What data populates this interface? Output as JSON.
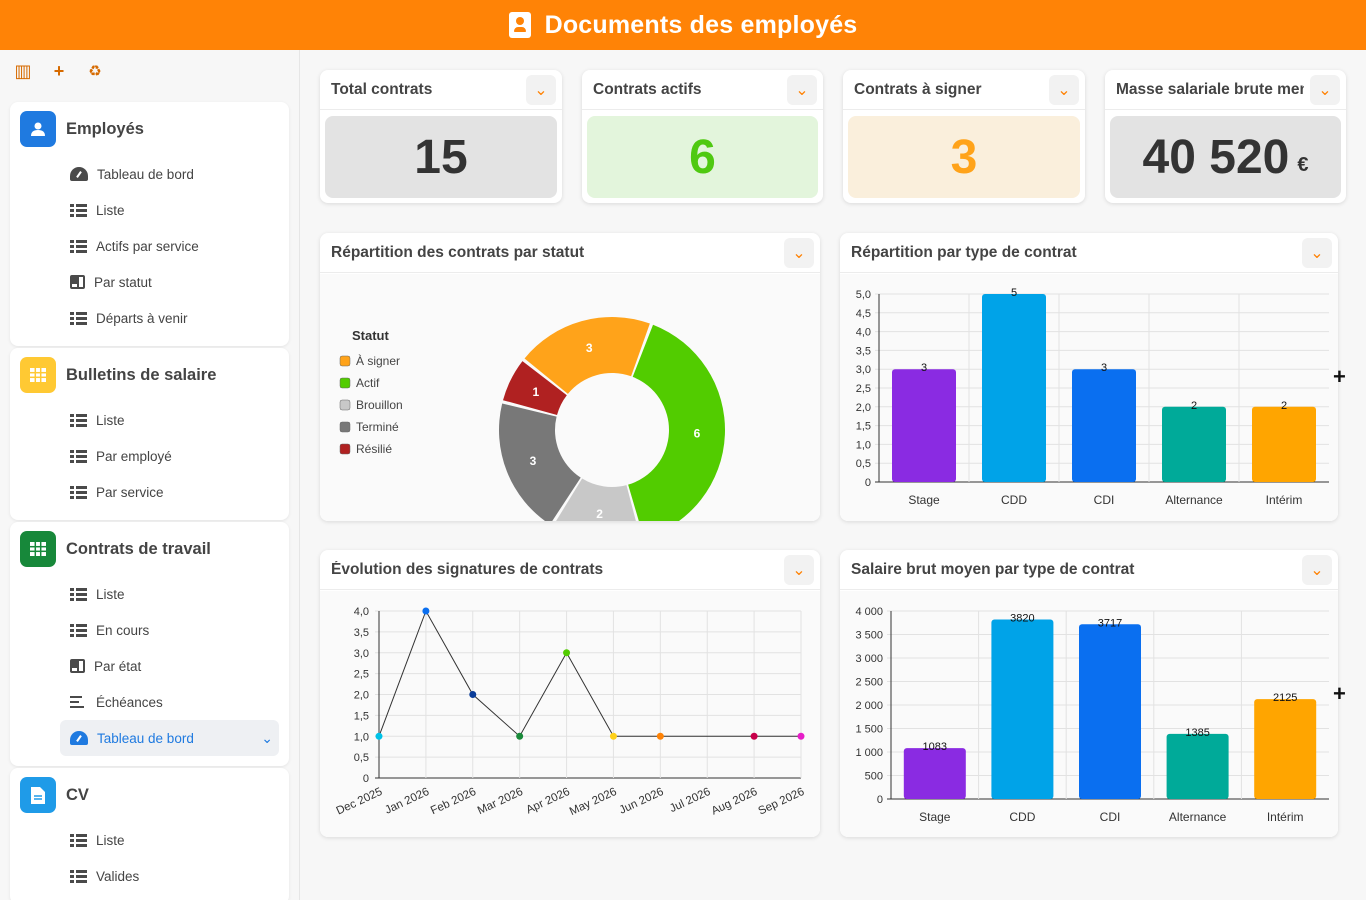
{
  "header": {
    "title": "Documents des employés",
    "icon": "id-badge-icon"
  },
  "sidebar": {
    "toolbar": [
      {
        "icon": "columns-icon",
        "glyph": "▥"
      },
      {
        "icon": "plus-icon",
        "glyph": "+"
      },
      {
        "icon": "recycle-icon",
        "glyph": "♻"
      }
    ],
    "sections": [
      {
        "title": "Employés",
        "icon": "user-icon",
        "color": "#1f7ae0",
        "items": [
          {
            "label": "Tableau de bord",
            "icon": "gauge-icon"
          },
          {
            "label": "Liste",
            "icon": "list-icon"
          },
          {
            "label": "Actifs par service",
            "icon": "list-icon"
          },
          {
            "label": "Par statut",
            "icon": "board-icon"
          },
          {
            "label": "Départs à venir",
            "icon": "list-icon"
          }
        ]
      },
      {
        "title": "Bulletins de salaire",
        "icon": "grid-icon",
        "color": "#ffc933",
        "items": [
          {
            "label": "Liste",
            "icon": "list-icon"
          },
          {
            "label": "Par employé",
            "icon": "list-icon"
          },
          {
            "label": "Par service",
            "icon": "list-icon"
          }
        ]
      },
      {
        "title": "Contrats de travail",
        "icon": "grid-icon",
        "color": "#17883a",
        "items": [
          {
            "label": "Liste",
            "icon": "list-icon"
          },
          {
            "label": "En cours",
            "icon": "list-icon"
          },
          {
            "label": "Par état",
            "icon": "board-icon"
          },
          {
            "label": "Échéances",
            "icon": "lines-icon"
          },
          {
            "label": "Tableau de bord",
            "icon": "gauge-icon",
            "active": true
          }
        ]
      },
      {
        "title": "CV",
        "icon": "document-icon",
        "color": "#1f9be8",
        "items": [
          {
            "label": "Liste",
            "icon": "list-icon"
          },
          {
            "label": "Valides",
            "icon": "list-icon"
          }
        ]
      }
    ]
  },
  "kpis": [
    {
      "title": "Total contrats",
      "value": "15",
      "unit": "",
      "bg": "#e3e3e3",
      "color": "#333333"
    },
    {
      "title": "Contrats actifs",
      "value": "6",
      "unit": "",
      "bg": "#e3f5dc",
      "color": "#4fc911"
    },
    {
      "title": "Contrats à signer",
      "value": "3",
      "unit": "",
      "bg": "#faefdc",
      "color": "#ffa31a"
    },
    {
      "title": "Masse salariale brute mensuelle",
      "value": "40 520",
      "unit": "€",
      "bg": "#e3e3e3",
      "color": "#333333"
    }
  ],
  "charts": {
    "status": {
      "title": "Répartition des contrats par statut"
    },
    "type": {
      "title": "Répartition par type de contrat"
    },
    "evolution": {
      "title": "Évolution des signatures de contrats"
    },
    "salary": {
      "title": "Salaire brut moyen par type de contrat"
    }
  },
  "chart_data": [
    {
      "type": "pie",
      "legend_title": "Statut",
      "legend_position": "left",
      "categories": [
        "À signer",
        "Actif",
        "Brouillon",
        "Terminé",
        "Résilié"
      ],
      "values": [
        3,
        6,
        2,
        3,
        1
      ],
      "colors": [
        "#ffa31a",
        "#52cc00",
        "#c8c8c8",
        "#787878",
        "#b02121"
      ]
    },
    {
      "type": "bar",
      "categories": [
        "Stage",
        "CDD",
        "CDI",
        "Alternance",
        "Intérim"
      ],
      "values": [
        3,
        5,
        3,
        2,
        2
      ],
      "colors": [
        "#8a2be2",
        "#00a3e8",
        "#0a6ff0",
        "#00aa99",
        "#ffa500"
      ],
      "ylim": [
        0,
        5
      ],
      "yticks": [
        "0",
        "0,5",
        "1,0",
        "1,5",
        "2,0",
        "2,5",
        "3,0",
        "3,5",
        "4,0",
        "4,5",
        "5,0"
      ],
      "grid": true
    },
    {
      "type": "line",
      "x": [
        "Dec 2025",
        "Jan 2026",
        "Feb 2026",
        "Mar 2026",
        "Apr 2026",
        "May 2026",
        "Jun 2026",
        "Jul 2026",
        "Aug 2026",
        "Sep 2026"
      ],
      "points": [
        {
          "x": "Dec 2025",
          "y": 1,
          "color": "#00c2e8"
        },
        {
          "x": "Jan 2026",
          "y": 4,
          "color": "#0a6ff0"
        },
        {
          "x": "Feb 2026",
          "y": 2,
          "color": "#0a3d99"
        },
        {
          "x": "Mar 2026",
          "y": 1,
          "color": "#1a8a3a"
        },
        {
          "x": "Apr 2026",
          "y": 3,
          "color": "#52cc00"
        },
        {
          "x": "May 2026",
          "y": 1,
          "color": "#ffd11a"
        },
        {
          "x": "Jun 2026",
          "y": 1,
          "color": "#ff8306"
        },
        {
          "x": "Aug 2026",
          "y": 1,
          "color": "#c8004a"
        },
        {
          "x": "Sep 2026",
          "y": 1,
          "color": "#e61ec8"
        }
      ],
      "ylim": [
        0,
        4
      ],
      "yticks": [
        "0",
        "0,5",
        "1,0",
        "1,5",
        "2,0",
        "2,5",
        "3,0",
        "3,5",
        "4,0"
      ],
      "grid": true
    },
    {
      "type": "bar",
      "categories": [
        "Stage",
        "CDD",
        "CDI",
        "Alternance",
        "Intérim"
      ],
      "values": [
        1083,
        3820,
        3717,
        1385,
        2125
      ],
      "colors": [
        "#8a2be2",
        "#00a3e8",
        "#0a6ff0",
        "#00aa99",
        "#ffa500"
      ],
      "ylim": [
        0,
        4000
      ],
      "yticks": [
        "0",
        "500",
        "1 000",
        "1 500",
        "2 000",
        "2 500",
        "3 000",
        "3 500",
        "4 000"
      ],
      "grid": true
    }
  ]
}
